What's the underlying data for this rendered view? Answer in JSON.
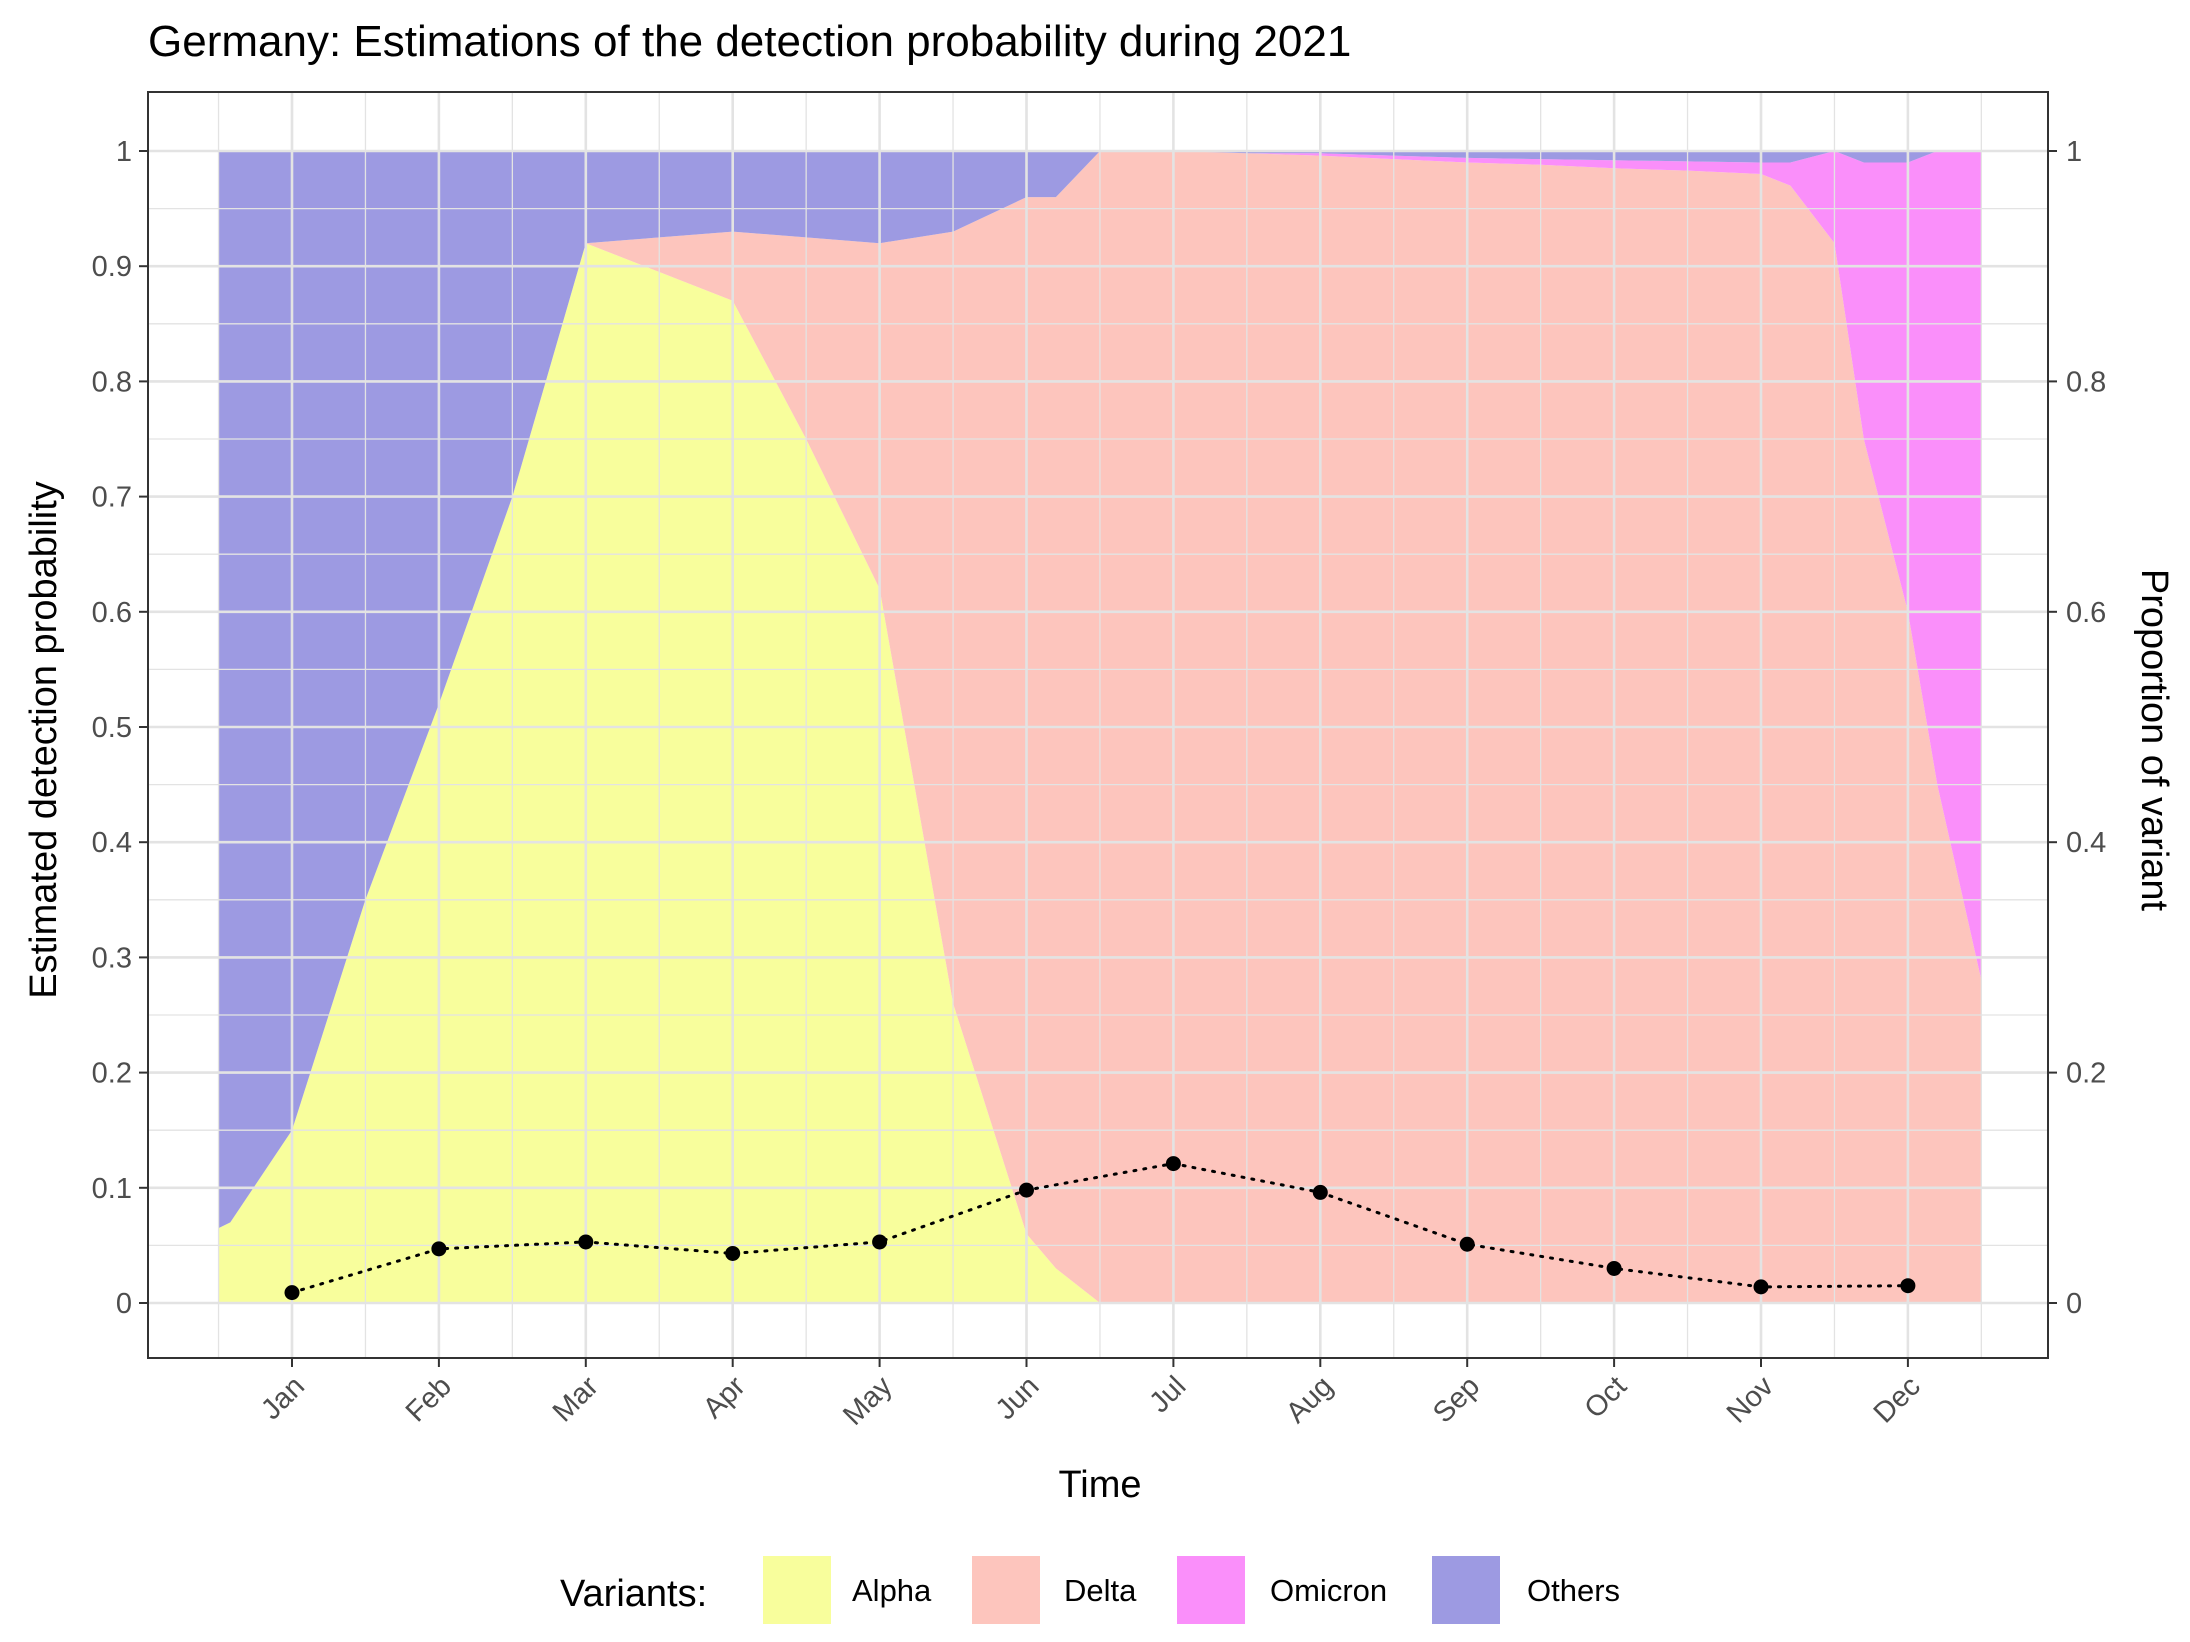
{
  "chart_data": {
    "type": "area",
    "title": "Germany: Estimations of the detection probability during 2021",
    "xlabel": "Time",
    "ylabel": "Estimated detection probability",
    "ylabel_right": "Proportion of variant",
    "x_ticks": [
      "Jan",
      "Feb",
      "Mar",
      "Apr",
      "May",
      "Jun",
      "Jul",
      "Aug",
      "Sep",
      "Oct",
      "Nov",
      "Dec"
    ],
    "xlim": [
      0.5,
      12.5
    ],
    "y_ticks": [
      "0",
      "0.1",
      "0.2",
      "0.3",
      "0.4",
      "0.5",
      "0.6",
      "0.7",
      "0.8",
      "0.9",
      "1"
    ],
    "y_ticks_right": [
      "0",
      "0.2",
      "0.4",
      "0.6",
      "0.8",
      "1"
    ],
    "ylim": [
      -0.05,
      1.05
    ],
    "grid": true,
    "legend_title": "Variants:",
    "legend_position": "bottom",
    "variant_proportions": {
      "x": [
        0.5,
        0.58,
        1.0,
        1.5,
        2.0,
        2.5,
        3.0,
        3.5,
        4.0,
        4.5,
        5.0,
        5.5,
        6.0,
        6.2,
        6.5,
        7.0,
        7.5,
        8.0,
        8.5,
        9.0,
        9.5,
        10.0,
        10.5,
        11.0,
        11.2,
        11.5,
        11.7,
        12.0,
        12.2,
        12.5
      ],
      "series": [
        {
          "name": "Alpha",
          "values": [
            0.065,
            0.07,
            0.15,
            0.35,
            0.52,
            0.7,
            0.92,
            0.895,
            0.87,
            0.75,
            0.62,
            0.26,
            0.06,
            0.03,
            0.0,
            0.0,
            0.0,
            0.0,
            0.0,
            0.0,
            0.0,
            0.0,
            0.0,
            0.0,
            0.0,
            0.0,
            0.0,
            0.0,
            0.0,
            0.0
          ]
        },
        {
          "name": "Delta",
          "values": [
            0.0,
            0.0,
            0.0,
            0.0,
            0.0,
            0.0,
            0.0,
            0.03,
            0.06,
            0.175,
            0.3,
            0.67,
            0.9,
            0.93,
            1.0,
            1.0,
            0.998,
            0.996,
            0.993,
            0.99,
            0.988,
            0.985,
            0.983,
            0.98,
            0.97,
            0.92,
            0.75,
            0.6,
            0.45,
            0.28
          ]
        },
        {
          "name": "Omicron",
          "values": [
            0.0,
            0.0,
            0.0,
            0.0,
            0.0,
            0.0,
            0.0,
            0.0,
            0.0,
            0.0,
            0.0,
            0.0,
            0.0,
            0.0,
            0.0,
            0.0,
            0.0,
            0.002,
            0.003,
            0.004,
            0.005,
            0.007,
            0.008,
            0.01,
            0.02,
            0.08,
            0.24,
            0.39,
            0.55,
            0.72
          ]
        },
        {
          "name": "Others",
          "values": [
            0.935,
            0.93,
            0.85,
            0.65,
            0.48,
            0.3,
            0.08,
            0.075,
            0.07,
            0.075,
            0.08,
            0.07,
            0.04,
            0.04,
            0.0,
            0.0,
            0.002,
            0.002,
            0.004,
            0.006,
            0.007,
            0.008,
            0.009,
            0.01,
            0.01,
            0.0,
            0.01,
            0.01,
            0.0,
            0.0
          ]
        }
      ]
    },
    "detection_probability": {
      "x": [
        1,
        2,
        3,
        4,
        5,
        6,
        7,
        8,
        9,
        10,
        11,
        12
      ],
      "values": [
        0.009,
        0.047,
        0.053,
        0.043,
        0.053,
        0.098,
        0.121,
        0.096,
        0.051,
        0.03,
        0.014,
        0.015
      ]
    },
    "colors": {
      "Alpha": "#f8fe9c",
      "Delta": "#fdc5bd",
      "Omicron": "#fa8ffa",
      "Others": "#9d9ae2",
      "points": "#000000",
      "grid": "#e3e3e3",
      "panel_border": "#333333"
    }
  }
}
